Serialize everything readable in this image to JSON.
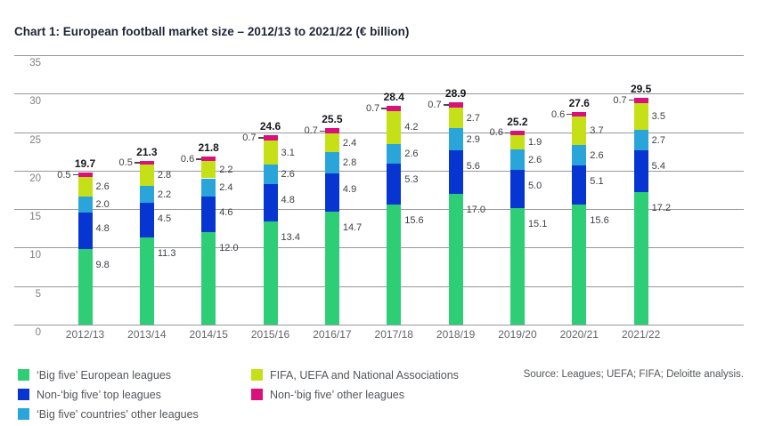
{
  "title": "Chart 1: European football market size – 2012/13 to 2021/22 (€ billion)",
  "source": "Source: Leagues; UEFA; FIFA; Deloitte analysis.",
  "chart_data": {
    "type": "bar",
    "stacked": true,
    "title": "Chart 1: European football market size – 2012/13 to 2021/22 (€ billion)",
    "xlabel": "",
    "ylabel": "",
    "ylim": [
      0,
      35
    ],
    "yticks": [
      0,
      5,
      10,
      15,
      20,
      25,
      30,
      35
    ],
    "grid": "horizontal",
    "legend_position": "bottom",
    "categories": [
      "2012/13",
      "2013/14",
      "2014/15",
      "2015/16",
      "2016/17",
      "2017/18",
      "2018/19",
      "2019/20",
      "2020/21",
      "2021/22"
    ],
    "series": [
      {
        "name": "‘Big five’ European leagues",
        "color": "#2ece76",
        "values": [
          9.8,
          11.3,
          12.0,
          13.4,
          14.7,
          15.6,
          17.0,
          15.1,
          15.6,
          17.2
        ]
      },
      {
        "name": "Non-‘big five’ top leagues",
        "color": "#0635d2",
        "values": [
          4.8,
          4.5,
          4.6,
          4.8,
          4.9,
          5.3,
          5.6,
          5.0,
          5.1,
          5.4
        ]
      },
      {
        "name": "‘Big five’ countries’ other leagues",
        "color": "#2aa5da",
        "values": [
          2.0,
          2.2,
          2.4,
          2.6,
          2.8,
          2.6,
          2.9,
          2.6,
          2.6,
          2.7
        ]
      },
      {
        "name": "FIFA, UEFA and National Associations",
        "color": "#c6e018",
        "values": [
          2.6,
          2.8,
          2.2,
          3.1,
          2.4,
          4.2,
          2.7,
          1.9,
          3.7,
          3.5
        ]
      },
      {
        "name": "Non-‘big five’ other leagues",
        "color": "#d9117a",
        "values": [
          0.5,
          0.5,
          0.6,
          0.7,
          0.7,
          0.7,
          0.7,
          0.6,
          0.6,
          0.7
        ]
      }
    ],
    "totals": [
      19.7,
      21.3,
      21.8,
      24.6,
      25.5,
      28.4,
      28.9,
      25.2,
      27.6,
      29.5
    ],
    "legend_columns": [
      [
        0,
        1,
        2
      ],
      [
        3,
        4
      ]
    ]
  }
}
